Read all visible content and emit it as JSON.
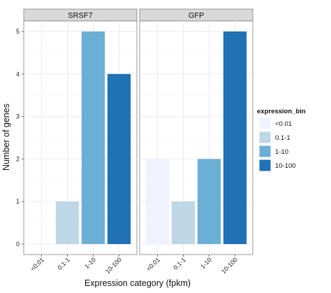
{
  "chart_data": {
    "type": "bar",
    "facets": [
      {
        "name": "SRSF7",
        "values": [
          0,
          1,
          5,
          4
        ]
      },
      {
        "name": "GFP",
        "values": [
          2,
          1,
          2,
          5
        ]
      }
    ],
    "categories": [
      "<0.01",
      "0.1-1",
      "1-10",
      "10-100"
    ],
    "xlabel": "Expression category (fpkm)",
    "ylabel": "Number of genes",
    "ylim": [
      0,
      5
    ],
    "yticks": [
      0,
      1,
      2,
      3,
      4,
      5
    ],
    "legend": {
      "title": "expression_bin",
      "position": "right",
      "entries": [
        "<0.01",
        "0.1-1",
        "1-10",
        "10-100"
      ]
    },
    "colors": [
      "#eff3ff",
      "#bdd7e7",
      "#6baed6",
      "#2171b5"
    ],
    "grid": true
  }
}
